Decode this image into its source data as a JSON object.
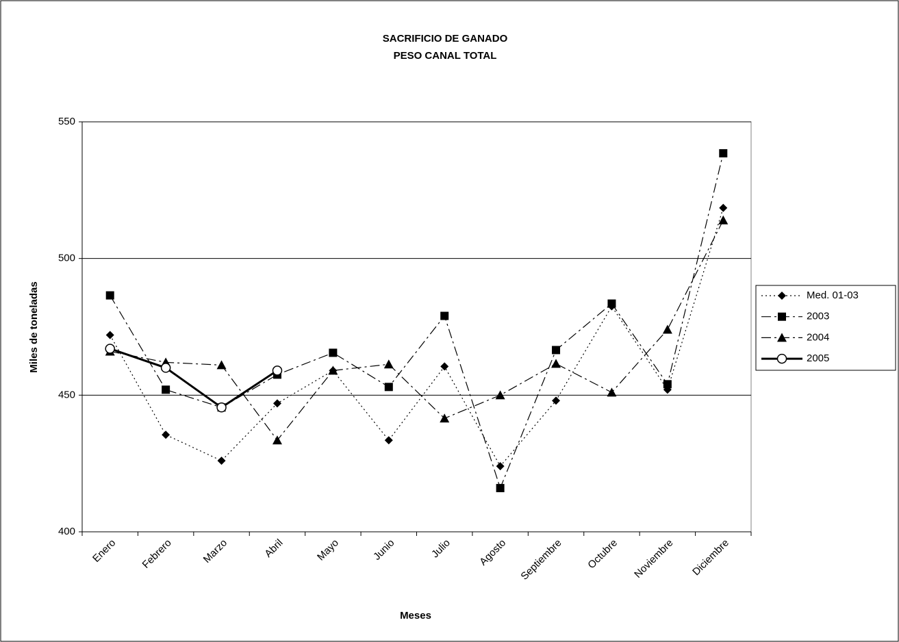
{
  "chart_data": {
    "type": "line",
    "title": "SACRIFICIO DE GANADO",
    "subtitle": "PESO CANAL TOTAL",
    "xlabel": "Meses",
    "ylabel": "Miles de toneladas",
    "categories": [
      "Enero",
      "Febrero",
      "Marzo",
      "Abril",
      "Mayo",
      "Junio",
      "Julio",
      "Agosto",
      "Septiembre",
      "Octubre",
      "Noviembre",
      "Diciembre"
    ],
    "ylim": [
      400,
      550
    ],
    "yticks": [
      400,
      450,
      500,
      550
    ],
    "grid": true,
    "legend": "right",
    "series": [
      {
        "name": "Med. 01-03",
        "color": "#000000",
        "line_style": "dotted",
        "marker": "diamond",
        "values": [
          472,
          435.5,
          426,
          447,
          459,
          433.5,
          460.5,
          424,
          448,
          482.5,
          452,
          518.5
        ]
      },
      {
        "name": "2003",
        "color": "#000000",
        "line_style": "dash-dot",
        "marker": "square",
        "values": [
          486.5,
          452,
          445.5,
          457.5,
          465.5,
          453,
          479,
          416,
          466.5,
          483.5,
          454,
          538.5
        ]
      },
      {
        "name": "2004",
        "color": "#000000",
        "line_style": "dash-dot",
        "marker": "triangle",
        "values": [
          466,
          462,
          461,
          433.5,
          459,
          461.3,
          441.5,
          450,
          461.5,
          451,
          474,
          514
        ]
      },
      {
        "name": "2005",
        "color": "#000000",
        "line_style": "solid",
        "marker": "circle",
        "values": [
          467,
          460,
          445.5,
          459,
          null,
          null,
          null,
          null,
          null,
          null,
          null,
          null
        ]
      }
    ]
  }
}
